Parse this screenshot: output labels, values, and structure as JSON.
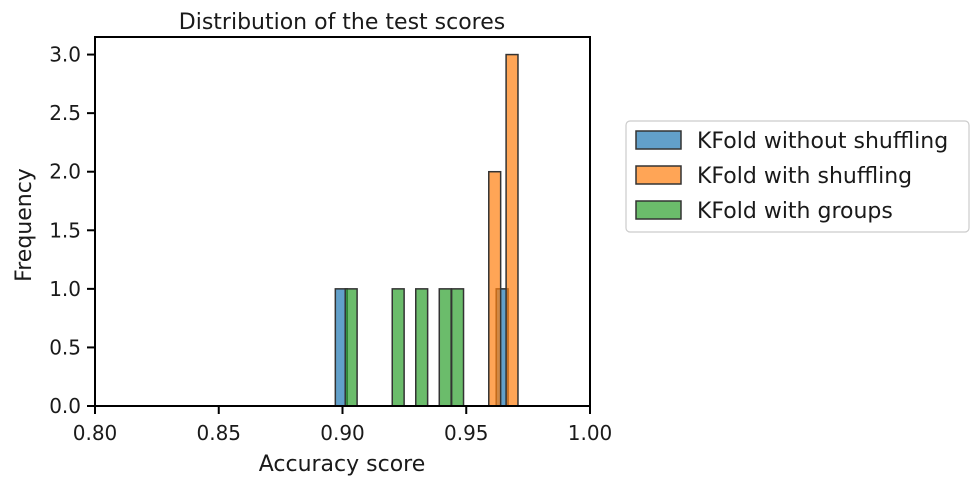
{
  "chart_data": {
    "type": "bar",
    "title": "Distribution of the test scores",
    "xlabel": "Accuracy score",
    "ylabel": "Frequency",
    "xlim": [
      0.8,
      1.0
    ],
    "ylim": [
      0,
      3.15
    ],
    "xticks": [
      "0.80",
      "0.85",
      "0.90",
      "0.95",
      "1.00"
    ],
    "yticks": [
      "0.0",
      "0.5",
      "1.0",
      "1.5",
      "2.0",
      "2.5",
      "3.0"
    ],
    "grid": false,
    "legend_position": "outside-right",
    "bin_width": 0.0048,
    "series": [
      {
        "name": "KFold without shuffling",
        "color": "#1f77b4",
        "bins": [
          {
            "x": 0.8995,
            "count": 1
          },
          {
            "x": 0.9645,
            "count": 1
          }
        ]
      },
      {
        "name": "KFold with shuffling",
        "color": "#ff7f0e",
        "bins": [
          {
            "x": 0.9615,
            "count": 2
          },
          {
            "x": 0.9685,
            "count": 3
          }
        ]
      },
      {
        "name": "KFold with groups",
        "color": "#2ca02c",
        "bins": [
          {
            "x": 0.9035,
            "count": 1
          },
          {
            "x": 0.9225,
            "count": 1
          },
          {
            "x": 0.932,
            "count": 1
          },
          {
            "x": 0.9415,
            "count": 1
          },
          {
            "x": 0.9465,
            "count": 1
          }
        ]
      }
    ]
  }
}
